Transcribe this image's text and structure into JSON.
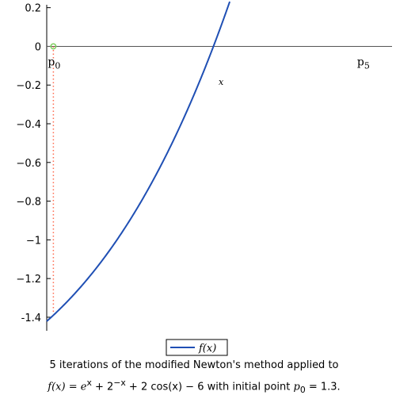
{
  "chart_data": {
    "type": "line",
    "title": "",
    "xlabel": "x",
    "ylabel": "",
    "xlim": [
      1.278,
      2.42
    ],
    "ylim": [
      -1.47,
      0.215
    ],
    "yticks": [
      0.2,
      0,
      -0.2,
      -0.4,
      -0.6,
      -0.8,
      -1,
      -1.2,
      -1.4
    ],
    "ytick_labels": [
      "0.2",
      "0",
      "−0.2",
      "−0.4",
      "−0.6",
      "−0.8",
      "−1",
      "−1.2",
      "-1.4"
    ],
    "grid": false,
    "legend_position": "bottom-center",
    "series": [
      {
        "name": "f(x)",
        "color": "#1f4fb4",
        "function": "e^x + 2^(-x) + 2 cos(x) - 6"
      }
    ],
    "points": [
      {
        "label": "p",
        "subscript": "0",
        "x": 1.3,
        "y": 0
      },
      {
        "label": "p",
        "subscript": "5",
        "x": 2.3229,
        "y": 0
      }
    ],
    "guide_segment": {
      "x": 1.3,
      "y_from": 0,
      "y_to": -1.3774,
      "color": "#ff6a4d",
      "style": "dotted"
    },
    "marker_color": "#7fcf60"
  },
  "caption": {
    "line1": "5 iterations of the modified Newton's method applied to",
    "lhs": "f(x) = e",
    "sup1": "x",
    "mid1": " + 2",
    "sup2": "−x",
    "mid2": " + 2 cos(x) − 6 with initial point ",
    "pvar": "p",
    "psub": "0",
    "pval": " = 1.3."
  }
}
